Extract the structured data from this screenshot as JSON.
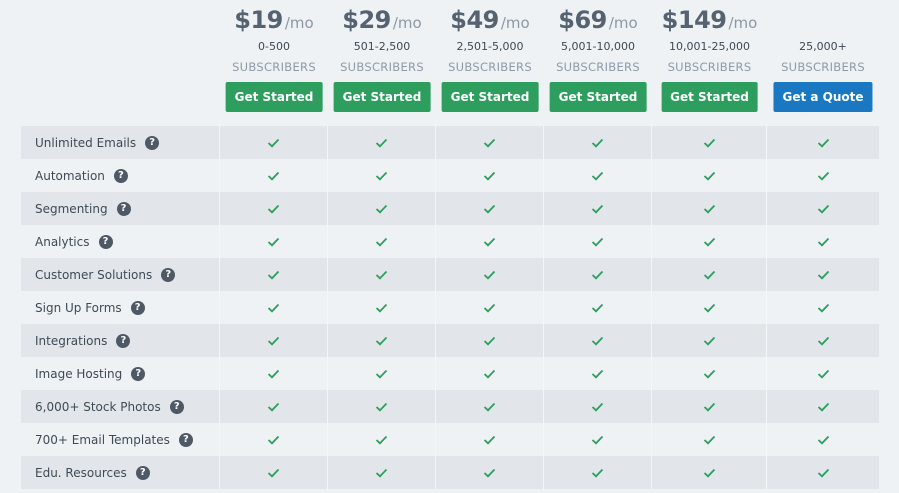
{
  "plans": [
    {
      "price": "$19",
      "period": "/mo",
      "range": "0-500",
      "unit": "SUBSCRIBERS",
      "button": "Get Started"
    },
    {
      "price": "$29",
      "period": "/mo",
      "range": "501-2,500",
      "unit": "SUBSCRIBERS",
      "button": "Get Started"
    },
    {
      "price": "$49",
      "period": "/mo",
      "range": "2,501-5,000",
      "unit": "SUBSCRIBERS",
      "button": "Get Started"
    },
    {
      "price": "$69",
      "period": "/mo",
      "range": "5,001-10,000",
      "unit": "SUBSCRIBERS",
      "button": "Get Started"
    },
    {
      "price": "$149",
      "period": "/mo",
      "range": "10,001-25,000",
      "unit": "SUBSCRIBERS",
      "button": "Get Started"
    },
    {
      "price": null,
      "period": null,
      "range": "25,000+",
      "unit": "SUBSCRIBERS",
      "button": "Get a Quote"
    }
  ],
  "features": [
    "Unlimited Emails",
    "Automation",
    "Segmenting",
    "Analytics",
    "Customer Solutions",
    "Sign Up Forms",
    "Integrations",
    "Image Hosting",
    "6,000+ Stock Photos",
    "700+ Email Templates",
    "Edu. Resources"
  ],
  "help_glyph": "?",
  "icons": {
    "check": "check-icon",
    "help": "question-circle-icon"
  },
  "colors": {
    "check": "#2e9e5e",
    "primary_button": "#2e9e5e",
    "quote_button": "#1a78c2"
  }
}
